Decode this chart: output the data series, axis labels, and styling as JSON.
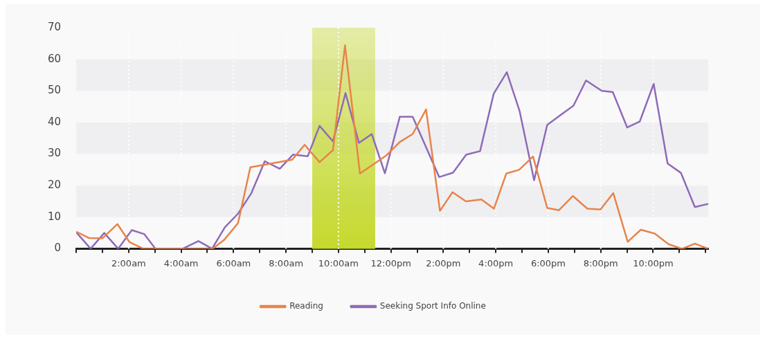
{
  "chart_data": {
    "type": "line",
    "legend": "bottom",
    "grid": "x",
    "marker": "none",
    "line_style": "solid",
    "xlim": [
      0,
      24.1
    ],
    "xticks": [
      {
        "value": 0,
        "label": null
      },
      {
        "value": 1,
        "label": null
      },
      {
        "value": 2,
        "label": "2:00am"
      },
      {
        "value": 3,
        "label": null
      },
      {
        "value": 4,
        "label": "4:00am"
      },
      {
        "value": 5,
        "label": null
      },
      {
        "value": 6,
        "label": "6:00am"
      },
      {
        "value": 7,
        "label": null
      },
      {
        "value": 8,
        "label": "8:00am"
      },
      {
        "value": 9,
        "label": null
      },
      {
        "value": 10,
        "label": "10:00am"
      },
      {
        "value": 11,
        "label": null
      },
      {
        "value": 12,
        "label": "12:00pm"
      },
      {
        "value": 13,
        "label": null
      },
      {
        "value": 14,
        "label": "2:00pm"
      },
      {
        "value": 15,
        "label": null
      },
      {
        "value": 16,
        "label": "4:00pm"
      },
      {
        "value": 17,
        "label": null
      },
      {
        "value": 18,
        "label": "6:00pm"
      },
      {
        "value": 19,
        "label": null
      },
      {
        "value": 20,
        "label": "8:00pm"
      },
      {
        "value": 21,
        "label": null
      },
      {
        "value": 22,
        "label": "10:00pm"
      },
      {
        "value": 23,
        "label": null
      },
      {
        "value": 24,
        "label": null
      }
    ],
    "ylim": [
      0,
      70
    ],
    "yticks": [
      0,
      10,
      20,
      30,
      40,
      50,
      60,
      70
    ],
    "bands": [
      {
        "axis": "x",
        "from": 9,
        "to": 11.4,
        "color": "#c5d92d"
      }
    ],
    "series": [
      {
        "name": "Reading",
        "color": "#e8834a",
        "x": [
          0,
          0.48,
          1.0,
          1.57,
          2.03,
          2.56,
          5.2,
          5.63,
          6.17,
          6.64,
          8.24,
          8.71,
          9.28,
          9.79,
          10.25,
          10.82,
          11.82,
          12.34,
          12.83,
          13.34,
          13.87,
          14.35,
          14.86,
          15.45,
          15.93,
          16.4,
          16.89,
          17.42,
          17.96,
          18.41,
          18.94,
          19.49,
          19.99,
          20.48,
          21.03,
          21.53,
          22.06,
          22.59,
          23.1,
          23.59,
          24.1
        ],
        "values": [
          5.4,
          3.4,
          3.3,
          7.8,
          2.1,
          0,
          0,
          2.7,
          8.1,
          25.8,
          28.2,
          32.9,
          27.4,
          31.2,
          64.4,
          23.8,
          29.5,
          33.8,
          36.3,
          44.1,
          12.0,
          17.9,
          15.0,
          15.6,
          12.7,
          23.8,
          25.0,
          29.2,
          12.9,
          12.2,
          16.7,
          12.7,
          12.4,
          17.6,
          2.2,
          6.0,
          4.8,
          1.4,
          0,
          1.6,
          0
        ]
      },
      {
        "name": "Seeking Sport Info Online",
        "color": "#8e6bb8",
        "x": [
          0,
          0.55,
          1.07,
          1.6,
          2.12,
          2.6,
          3.02,
          4.06,
          4.66,
          5.18,
          5.67,
          6.17,
          6.68,
          7.19,
          7.76,
          8.27,
          8.83,
          9.28,
          9.79,
          10.27,
          10.78,
          11.27,
          11.77,
          12.34,
          12.83,
          13.84,
          14.37,
          14.87,
          15.4,
          15.92,
          16.42,
          16.91,
          17.46,
          17.96,
          18.46,
          18.96,
          19.44,
          20.04,
          20.46,
          21.01,
          21.49,
          22.02,
          22.55,
          23.06,
          23.59,
          24.1
        ],
        "values": [
          5.2,
          0,
          5.0,
          0,
          5.9,
          4.6,
          0,
          0,
          2.4,
          0,
          6.8,
          11.1,
          17.6,
          27.7,
          25.3,
          29.8,
          29.3,
          38.9,
          34.0,
          49.3,
          33.5,
          36.3,
          23.9,
          41.8,
          41.8,
          22.7,
          24.1,
          29.8,
          30.9,
          49.1,
          55.9,
          43.5,
          21.7,
          39.2,
          42.3,
          45.3,
          53.3,
          50.0,
          49.6,
          38.4,
          40.3,
          52.2,
          27.0,
          24.0,
          13.2,
          14.2
        ]
      }
    ]
  }
}
